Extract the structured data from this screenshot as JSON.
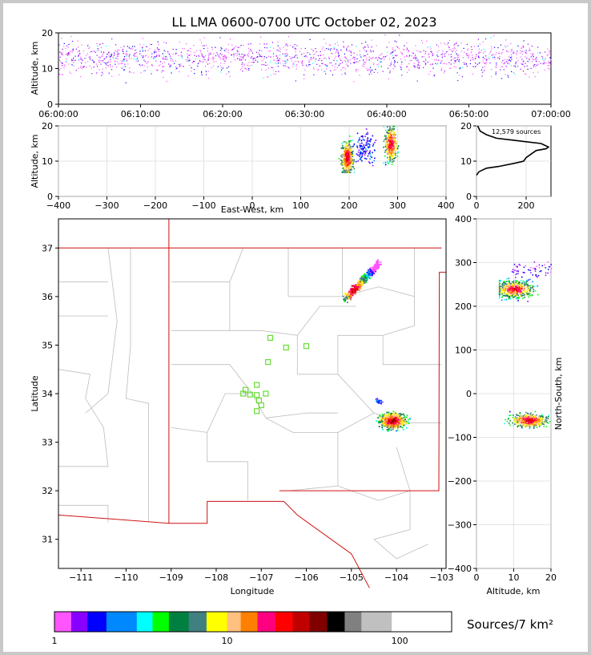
{
  "title": "LL LMA 0600-0700 UTC October 02, 2023",
  "colorbar_label": "Sources/7 km²",
  "source_count_label": "12,579 sources",
  "chart_data": [
    {
      "type": "scatter",
      "name": "altitude-time",
      "ylabel": "Altitude, km",
      "x_ticks": [
        "06:00:00",
        "06:10:00",
        "06:20:00",
        "06:30:00",
        "06:40:00",
        "06:50:00",
        "07:00:00"
      ],
      "ylim": [
        0,
        20
      ],
      "y_ticks": [
        0,
        10,
        20
      ],
      "data_summary": "dense sources between ~6 and 20 km throughout the hour"
    },
    {
      "type": "heatmap",
      "name": "altitude-east-west",
      "xlabel": "East-West, km",
      "ylabel": "Altitude, km",
      "xlim": [
        -400,
        400
      ],
      "x_ticks": [
        -400,
        -300,
        -200,
        -100,
        0,
        100,
        200,
        300,
        400
      ],
      "ylim": [
        0,
        20
      ],
      "y_ticks": [
        0,
        10,
        20
      ],
      "clusters": [
        {
          "x": 195,
          "alt_min": 7,
          "alt_max": 20,
          "peak_alt": 11
        },
        {
          "x": 285,
          "alt_min": 6,
          "alt_max": 20,
          "peak_alt": 15
        },
        {
          "x": 230,
          "alt_min": 8,
          "alt_max": 20,
          "peak_alt": 14
        }
      ]
    },
    {
      "type": "line",
      "name": "altitude-histogram",
      "xlim": [
        0,
        300
      ],
      "x_ticks": [
        0,
        200
      ],
      "ylim": [
        0,
        20
      ],
      "y_ticks": [
        0,
        10,
        20
      ],
      "profile": [
        [
          0,
          6
        ],
        [
          10,
          7
        ],
        [
          40,
          8
        ],
        [
          90,
          8.5
        ],
        [
          160,
          9.5
        ],
        [
          190,
          10
        ],
        [
          200,
          11
        ],
        [
          220,
          12
        ],
        [
          240,
          13
        ],
        [
          280,
          13.5
        ],
        [
          290,
          14
        ],
        [
          260,
          15
        ],
        [
          200,
          15.5
        ],
        [
          140,
          16
        ],
        [
          80,
          16.5
        ],
        [
          40,
          17.5
        ],
        [
          15,
          18.5
        ],
        [
          5,
          20
        ]
      ]
    },
    {
      "type": "heatmap",
      "name": "plan-view-map",
      "xlabel": "Longitude",
      "ylabel": "Latitude",
      "xlim": [
        -111.5,
        -102.9
      ],
      "x_ticks": [
        -111,
        -110,
        -109,
        -108,
        -107,
        -106,
        -105,
        -104,
        -103
      ],
      "ylim": [
        30.4,
        37.6
      ],
      "y_ticks": [
        31,
        32,
        33,
        34,
        35,
        36,
        37
      ],
      "clusters": [
        {
          "lon": -104.95,
          "lat": 36.15,
          "peak_lon": -104.95,
          "peak_lat": 36.15
        },
        {
          "lon": -104.1,
          "lat": 33.45,
          "peak_lon": -104.1,
          "peak_lat": 33.45
        }
      ],
      "stations": [
        [
          -106.8,
          35.15
        ],
        [
          -106.45,
          34.95
        ],
        [
          -106.0,
          34.98
        ],
        [
          -106.85,
          34.65
        ],
        [
          -107.1,
          34.18
        ],
        [
          -107.35,
          34.08
        ],
        [
          -107.4,
          34.0
        ],
        [
          -107.25,
          33.98
        ],
        [
          -107.1,
          33.97
        ],
        [
          -106.9,
          34.0
        ],
        [
          -107.05,
          33.86
        ],
        [
          -107.0,
          33.76
        ],
        [
          -107.1,
          33.64
        ]
      ]
    },
    {
      "type": "heatmap",
      "name": "altitude-north-south",
      "xlabel": "Altitude, km",
      "ylabel": "North-South, km",
      "xlim": [
        0,
        20
      ],
      "x_ticks": [
        0,
        10,
        20
      ],
      "ylim": [
        -400,
        400
      ],
      "y_ticks": [
        400,
        300,
        200,
        100,
        0,
        -100,
        -200,
        -300,
        -400
      ],
      "clusters": [
        {
          "ns": 240,
          "peak_alt": 10
        },
        {
          "ns": -60,
          "peak_alt": 14
        }
      ]
    }
  ],
  "colorbar": {
    "colors": [
      "#ff55ff",
      "#8800ff",
      "#0000ff",
      "#0088ff",
      "#00ffff",
      "#00ff00",
      "#008040",
      "#408080",
      "#ffff00",
      "#ffc080",
      "#ff8000",
      "#ff0080",
      "#ff0000",
      "#c00000",
      "#800000",
      "#000000",
      "#808080",
      "#c0c0c0",
      "#ffffff"
    ],
    "tick_labels": [
      "1",
      "10",
      "100"
    ]
  }
}
